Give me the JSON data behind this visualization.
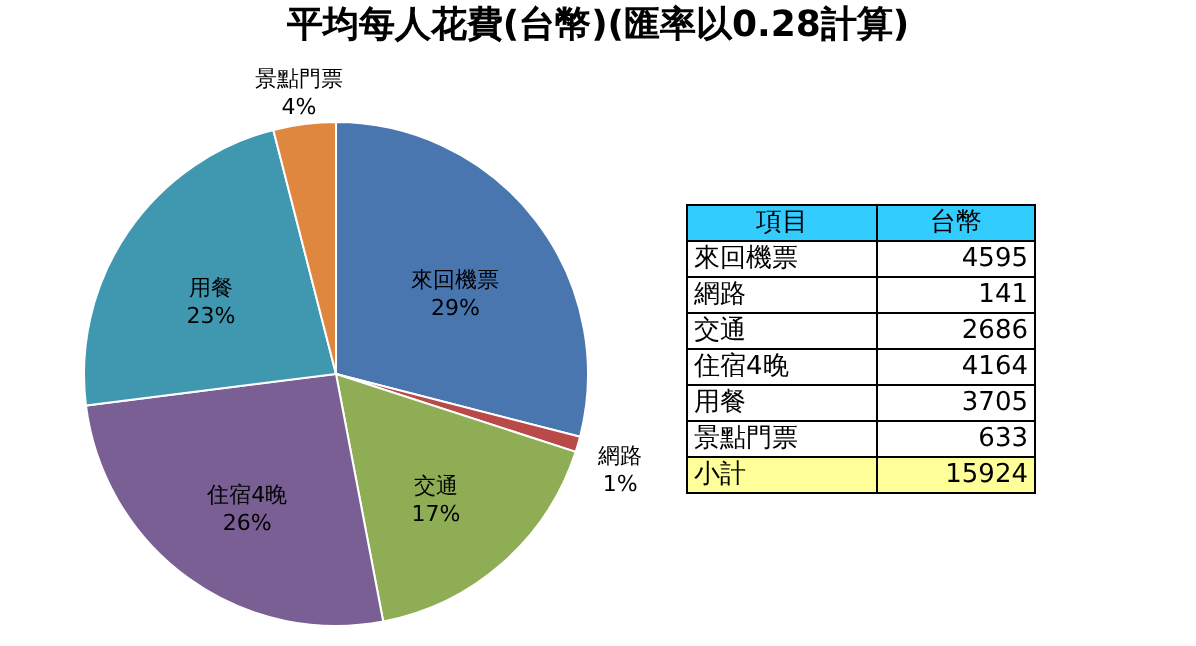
{
  "chart_data": [
    {
      "type": "pie",
      "title": "平均每人花費(台幣)(匯率以0.28計算)",
      "categories": [
        "來回機票",
        "網路",
        "交通",
        "住宿4晚",
        "用餐",
        "景點門票"
      ],
      "values": [
        29,
        1,
        17,
        26,
        23,
        4
      ],
      "value_labels": [
        "29%",
        "1%",
        "17%",
        "26%",
        "23%",
        "4%"
      ],
      "colors": [
        "#4a76b0",
        "#b94a48",
        "#8fad55",
        "#7a5f95",
        "#4098b0",
        "#e0873f"
      ],
      "legend": false
    },
    {
      "type": "other",
      "categories": [
        "來回機票",
        "網路",
        "交通",
        "住宿4晚",
        "用餐",
        "景點門票"
      ],
      "values": [
        4595,
        141,
        2686,
        4164,
        3705,
        633
      ],
      "data_labels": true,
      "annotations": [
        "項目",
        "台幣",
        "小計",
        "15924"
      ]
    }
  ]
}
